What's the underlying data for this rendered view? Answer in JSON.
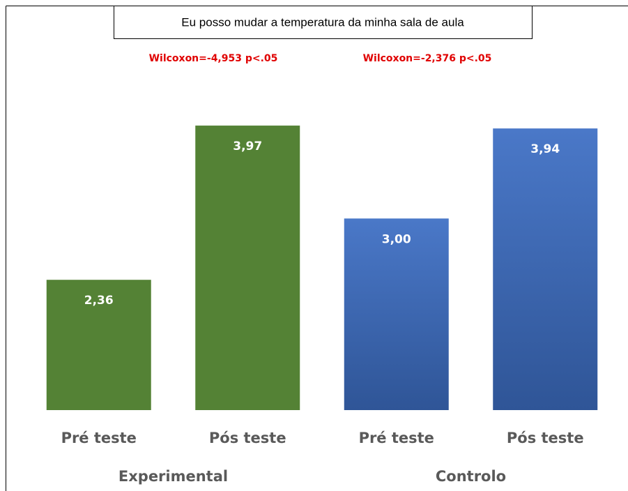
{
  "chart_data": {
    "type": "bar",
    "title": "Eu posso mudar a temperatura da minha sala de aula",
    "annotations": [
      "Wilcoxon=-4,953 p<.05",
      "Wilcoxon=-2,376 p<.05"
    ],
    "categories": [
      "Pré teste",
      "Pós teste",
      "Pré teste",
      "Pós teste"
    ],
    "groups": [
      "Experimental",
      "Controlo"
    ],
    "values": [
      2.36,
      3.97,
      3.0,
      3.94
    ],
    "value_labels": [
      "2,36",
      "3,97",
      "3,00",
      "3,94"
    ],
    "colors": [
      "#548235",
      "#548235",
      "#4472c4",
      "#4472c4"
    ],
    "ylim": [
      1,
      4.4
    ]
  }
}
